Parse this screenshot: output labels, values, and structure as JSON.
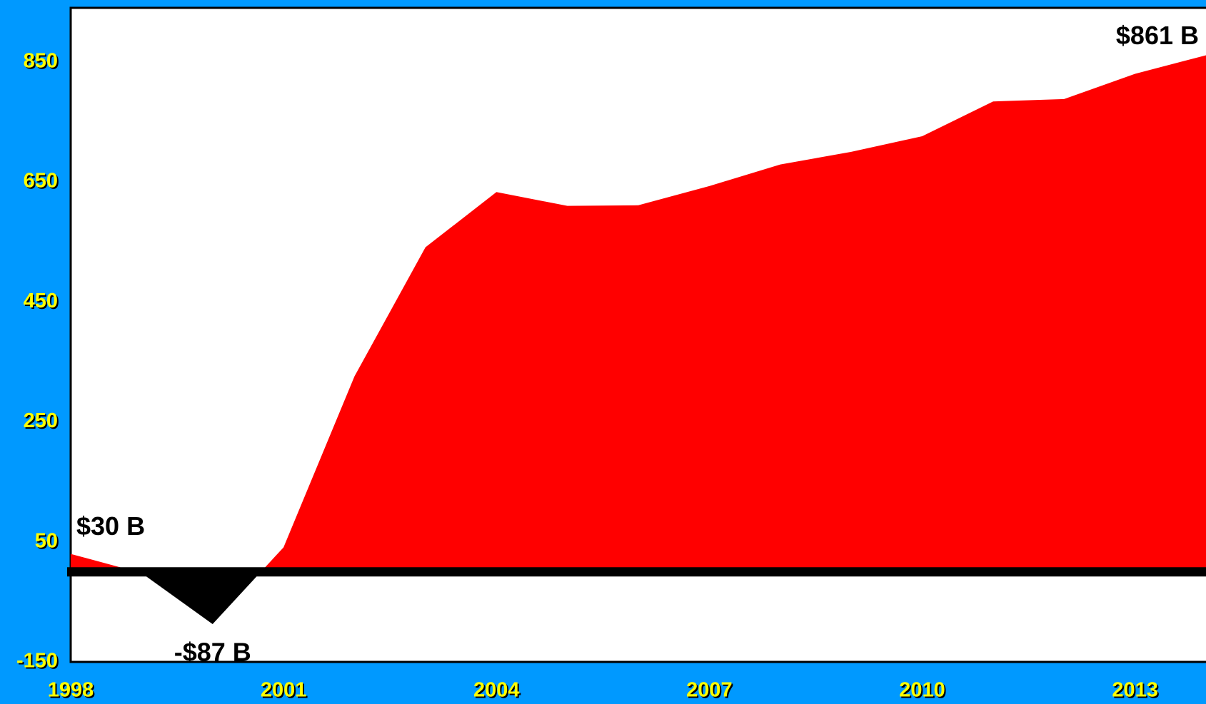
{
  "chart_data": {
    "type": "area",
    "x": [
      1998,
      1999,
      2000,
      2001,
      2002,
      2003,
      2004,
      2005,
      2006,
      2007,
      2008,
      2009,
      2010,
      2011,
      2012,
      2013,
      2014
    ],
    "series": [
      {
        "color": "#ff0000",
        "negative_color": "#000000",
        "values": [
          30,
          -2,
          -87,
          41,
          326,
          541,
          633,
          610,
          611,
          643,
          679,
          700,
          726,
          784,
          788,
          830,
          861
        ],
        "value_labels": [
          "$30 B",
          null,
          "-$87 B",
          null,
          null,
          null,
          null,
          null,
          null,
          null,
          null,
          null,
          null,
          null,
          null,
          null,
          "$861 B"
        ]
      }
    ],
    "xlim": [
      1998,
      2014
    ],
    "xticks": [
      1998,
      2001,
      2004,
      2007,
      2010,
      2013
    ],
    "ylim": [
      -150,
      940
    ],
    "yticks": [
      -150,
      50,
      250,
      450,
      650,
      850
    ],
    "zero_line": true
  }
}
